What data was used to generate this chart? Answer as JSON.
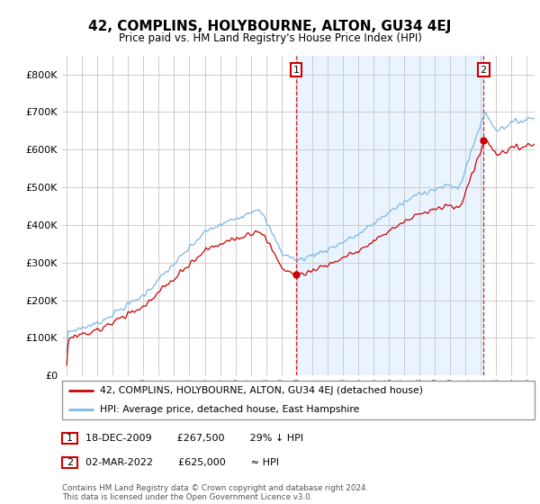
{
  "title": "42, COMPLINS, HOLYBOURNE, ALTON, GU34 4EJ",
  "subtitle": "Price paid vs. HM Land Registry's House Price Index (HPI)",
  "legend_entry1": "42, COMPLINS, HOLYBOURNE, ALTON, GU34 4EJ (detached house)",
  "legend_entry2": "HPI: Average price, detached house, East Hampshire",
  "annotation1_text": "18-DEC-2009        £267,500        29% ↓ HPI",
  "annotation2_text": "02-MAR-2022        £625,000        ≈ HPI",
  "footer": "Contains HM Land Registry data © Crown copyright and database right 2024.\nThis data is licensed under the Open Government Licence v3.0.",
  "hpi_color": "#7ab8e8",
  "hpi_shade_color": "#ddeeff",
  "price_color": "#cc0000",
  "annotation_color": "#cc0000",
  "background_color": "#ffffff",
  "grid_color": "#cccccc",
  "ylim": [
    0,
    850000
  ],
  "yticks": [
    0,
    100000,
    200000,
    300000,
    400000,
    500000,
    600000,
    700000,
    800000
  ],
  "xlim_start": 1994.7,
  "xlim_end": 2025.5,
  "sale1_t": 2009.958,
  "sale1_y": 267500,
  "sale2_t": 2022.167,
  "sale2_y": 625000
}
